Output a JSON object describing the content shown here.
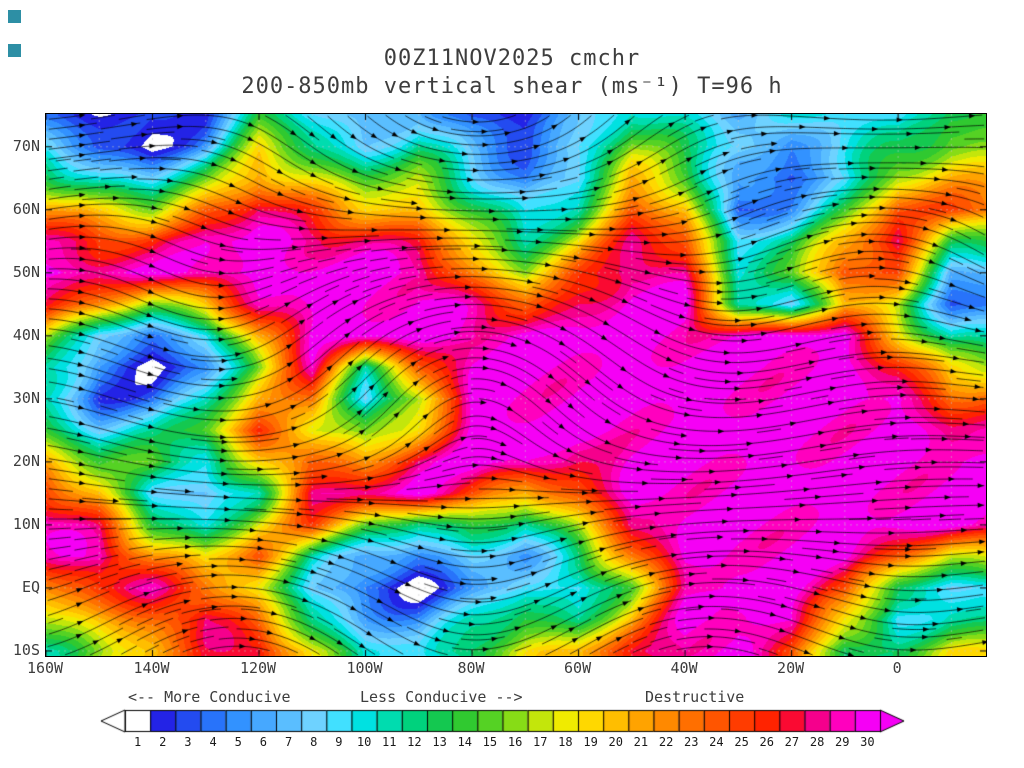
{
  "decor": {
    "corner_square_color": "#2d8fa5"
  },
  "title": {
    "line1": "00Z11NOV2025 cmchr",
    "line2": "200-850mb vertical shear (ms⁻¹) T=96 h"
  },
  "chart_data": {
    "type": "heatmap",
    "title": "00Z11NOV2025 cmchr 200-850mb vertical shear (ms⁻¹) T=96 h",
    "model": "cmchr",
    "valid_time": "00Z11NOV2025",
    "forecast_hour": "T=96 h",
    "units": "ms⁻¹",
    "lon_ticks": [
      "160W",
      "140W",
      "120W",
      "100W",
      "80W",
      "60W",
      "40W",
      "20W",
      "0"
    ],
    "lon_values": [
      -160,
      -140,
      -120,
      -100,
      -80,
      -60,
      -40,
      -20,
      0
    ],
    "lat_ticks": [
      "70N",
      "60N",
      "50N",
      "40N",
      "30N",
      "20N",
      "10N",
      "EQ",
      "10S"
    ],
    "lat_values": [
      70,
      60,
      50,
      40,
      30,
      20,
      10,
      0,
      -10
    ],
    "lon_range": [
      -160,
      16.5
    ],
    "lat_range": [
      -10.8,
      75.2
    ],
    "streamline_color": "#000000",
    "gridline_style": "dashed gray every 10 degrees",
    "colorbar": {
      "values": [
        1,
        2,
        3,
        4,
        5,
        6,
        7,
        8,
        9,
        10,
        11,
        12,
        13,
        14,
        15,
        16,
        17,
        18,
        19,
        20,
        21,
        22,
        23,
        24,
        25,
        26,
        27,
        28,
        29,
        30
      ],
      "colors": [
        "#FFFFFF",
        "#2323E6",
        "#234BF0",
        "#2873FA",
        "#3292FF",
        "#46A8FF",
        "#5ABEFF",
        "#6ED2FF",
        "#41E0FF",
        "#00E1E1",
        "#00DCAF",
        "#00D27D",
        "#14C850",
        "#30C930",
        "#55D224",
        "#87DC16",
        "#C3E60B",
        "#F0EB00",
        "#FFD800",
        "#FFBE00",
        "#FFA300",
        "#FF8900",
        "#FF6F00",
        "#FF5500",
        "#FF3C00",
        "#FF2300",
        "#FA0A32",
        "#F5008C",
        "#FF00BE",
        "#F500F5"
      ],
      "labels": {
        "left": "<-- More Conducive",
        "mid": "Less Conducive -->",
        "right": "Destructive"
      }
    },
    "grid": {
      "lons": [
        -160,
        -150,
        -140,
        -130,
        -120,
        -110,
        -100,
        -90,
        -80,
        -70,
        -60,
        -50,
        -40,
        -30,
        -20,
        -10,
        0,
        10
      ],
      "lats": [
        75,
        70,
        65,
        60,
        55,
        50,
        45,
        40,
        35,
        30,
        25,
        20,
        15,
        10,
        5,
        0,
        -5,
        -10
      ],
      "shear": [
        [
          4,
          2,
          1,
          3,
          14,
          9,
          5,
          8,
          3,
          2,
          6,
          12,
          10,
          6,
          9,
          11,
          8,
          13
        ],
        [
          8,
          3,
          1,
          6,
          18,
          12,
          8,
          12,
          6,
          3,
          9,
          16,
          12,
          9,
          5,
          9,
          12,
          16
        ],
        [
          14,
          10,
          8,
          14,
          22,
          18,
          14,
          16,
          10,
          4,
          8,
          20,
          16,
          5,
          3,
          8,
          18,
          20
        ],
        [
          22,
          18,
          16,
          24,
          28,
          24,
          20,
          20,
          14,
          8,
          12,
          24,
          20,
          2,
          6,
          14,
          24,
          24
        ],
        [
          28,
          26,
          26,
          29,
          30,
          29,
          28,
          26,
          18,
          12,
          18,
          28,
          24,
          10,
          12,
          20,
          28,
          14
        ],
        [
          30,
          29,
          29,
          30,
          30,
          30,
          30,
          30,
          22,
          16,
          24,
          30,
          28,
          10,
          14,
          26,
          24,
          6
        ],
        [
          26,
          22,
          16,
          20,
          28,
          30,
          30,
          30,
          28,
          24,
          28,
          30,
          30,
          12,
          8,
          20,
          16,
          4
        ],
        [
          18,
          8,
          4,
          8,
          22,
          30,
          30,
          30,
          30,
          30,
          30,
          30,
          30,
          29,
          30,
          30,
          20,
          10
        ],
        [
          12,
          4,
          1,
          5,
          16,
          28,
          12,
          24,
          30,
          30,
          30,
          30,
          30,
          30,
          30,
          30,
          26,
          18
        ],
        [
          10,
          3,
          4,
          10,
          20,
          24,
          8,
          16,
          30,
          30,
          30,
          30,
          30,
          30,
          30,
          30,
          30,
          24
        ],
        [
          14,
          8,
          10,
          16,
          26,
          18,
          14,
          20,
          30,
          30,
          30,
          30,
          30,
          30,
          30,
          30,
          30,
          28
        ],
        [
          20,
          14,
          16,
          10,
          18,
          24,
          22,
          28,
          30,
          30,
          28,
          30,
          30,
          30,
          30,
          30,
          30,
          30
        ],
        [
          26,
          20,
          8,
          6,
          12,
          28,
          28,
          30,
          26,
          20,
          24,
          30,
          30,
          30,
          30,
          30,
          30,
          30
        ],
        [
          30,
          26,
          14,
          10,
          18,
          24,
          16,
          12,
          14,
          10,
          18,
          28,
          30,
          30,
          30,
          30,
          30,
          30
        ],
        [
          28,
          30,
          22,
          18,
          24,
          12,
          6,
          4,
          8,
          6,
          12,
          22,
          30,
          30,
          30,
          30,
          24,
          18
        ],
        [
          22,
          26,
          28,
          24,
          18,
          8,
          3,
          1,
          5,
          9,
          8,
          16,
          28,
          30,
          30,
          26,
          12,
          8
        ],
        [
          16,
          20,
          24,
          28,
          22,
          12,
          6,
          5,
          10,
          14,
          12,
          20,
          30,
          30,
          30,
          18,
          8,
          12
        ],
        [
          12,
          16,
          20,
          26,
          28,
          18,
          10,
          8,
          14,
          18,
          20,
          26,
          30,
          30,
          24,
          12,
          14,
          18
        ]
      ]
    }
  }
}
